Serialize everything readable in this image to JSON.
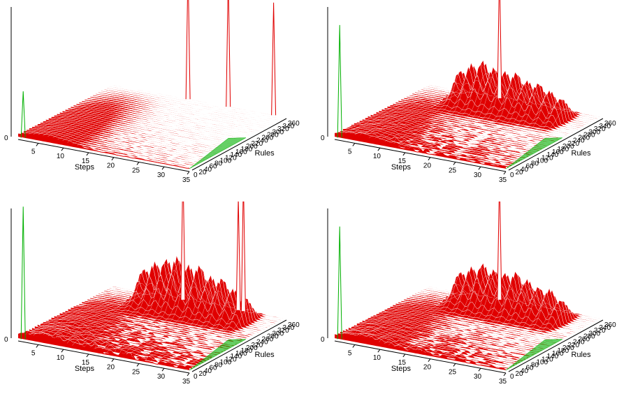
{
  "figure": {
    "layout": "2x2 grid of 3D surface plots"
  },
  "chart_data": [
    {
      "type": "surface3d",
      "panel": "top-left",
      "xlabel": "Steps",
      "ylabel": "Rules",
      "zlabel": "",
      "x_ticks": [
        "5",
        "10",
        "15",
        "20",
        "25",
        "30",
        "35"
      ],
      "z_ticks": [
        "0"
      ],
      "y_ticks_visible": "0 20 40 60 80 100 ... 360 (crowded)",
      "x_range": [
        1,
        35
      ],
      "y_range": [
        0,
        360
      ],
      "colors": {
        "surface": "#e00000",
        "mesh": "#ffffff",
        "back_edge": "#00b000"
      },
      "peaks": [
        {
          "step": 16,
          "rule": 360,
          "height": 1.0
        },
        {
          "step": 24,
          "rule": 360,
          "height": 1.0
        },
        {
          "step": 33,
          "rule": 360,
          "height": 0.85
        },
        {
          "step": 2,
          "rule": 0,
          "height": 0.35,
          "color": "green"
        }
      ],
      "baseline_roughness": 0.06
    },
    {
      "type": "surface3d",
      "panel": "top-right",
      "xlabel": "Steps",
      "ylabel": "Rules",
      "zlabel": "",
      "x_ticks": [
        "5",
        "10",
        "15",
        "20",
        "25",
        "30",
        "35"
      ],
      "z_ticks": [
        "0"
      ],
      "y_ticks_visible": "0 20 40 60 80 100 ... 360 (crowded)",
      "x_range": [
        1,
        35
      ],
      "y_range": [
        0,
        360
      ],
      "colors": {
        "surface": "#e00000",
        "mesh": "#ffffff",
        "back_edge": "#00b000"
      },
      "peaks": [
        {
          "step": 15,
          "rule": 360,
          "height": 1.0
        },
        {
          "step": 2,
          "rule": 0,
          "height": 0.85,
          "color": "green"
        }
      ],
      "ridge_peaks": [
        0.35,
        0.45,
        0.5,
        0.4,
        0.38,
        0.42,
        0.36,
        0.4,
        0.35,
        0.3
      ],
      "baseline_roughness": 0.2
    },
    {
      "type": "surface3d",
      "panel": "bottom-left",
      "xlabel": "Steps",
      "ylabel": "Rules",
      "zlabel": "",
      "x_ticks": [
        "5",
        "10",
        "15",
        "20",
        "25",
        "30",
        "35"
      ],
      "z_ticks": [
        "0"
      ],
      "y_ticks_visible": "0 20 40 60 80 100 ... 360 (crowded)",
      "x_range": [
        1,
        35
      ],
      "y_range": [
        0,
        360
      ],
      "colors": {
        "surface": "#e00000",
        "mesh": "#ffffff",
        "back_edge": "#00b000"
      },
      "peaks": [
        {
          "step": 15,
          "rule": 360,
          "height": 1.0
        },
        {
          "step": 27,
          "rule": 360,
          "height": 1.0
        },
        {
          "step": 26,
          "rule": 360,
          "height": 0.85
        },
        {
          "step": 2,
          "rule": 0,
          "height": 1.0,
          "color": "green"
        }
      ],
      "ridge_peaks": [
        0.4,
        0.5,
        0.55,
        0.6,
        0.5,
        0.55,
        0.45,
        0.5,
        0.4,
        0.35
      ],
      "baseline_roughness": 0.3
    },
    {
      "type": "surface3d",
      "panel": "bottom-right",
      "xlabel": "Steps",
      "ylabel": "Rules",
      "zlabel": "",
      "x_ticks": [
        "5",
        "10",
        "15",
        "20",
        "25",
        "30",
        "35"
      ],
      "z_ticks": [
        "0"
      ],
      "y_ticks_visible": "0 20 40 60 80 100 ... 360 (crowded)",
      "x_range": [
        1,
        35
      ],
      "y_range": [
        0,
        360
      ],
      "colors": {
        "surface": "#e00000",
        "mesh": "#ffffff",
        "back_edge": "#00b000"
      },
      "peaks": [
        {
          "step": 15,
          "rule": 360,
          "height": 0.95
        },
        {
          "step": 2,
          "rule": 0,
          "height": 0.85,
          "color": "green"
        }
      ],
      "ridge_peaks": [
        0.35,
        0.42,
        0.48,
        0.4,
        0.38,
        0.45,
        0.4,
        0.36,
        0.4,
        0.3
      ],
      "baseline_roughness": 0.2
    }
  ]
}
